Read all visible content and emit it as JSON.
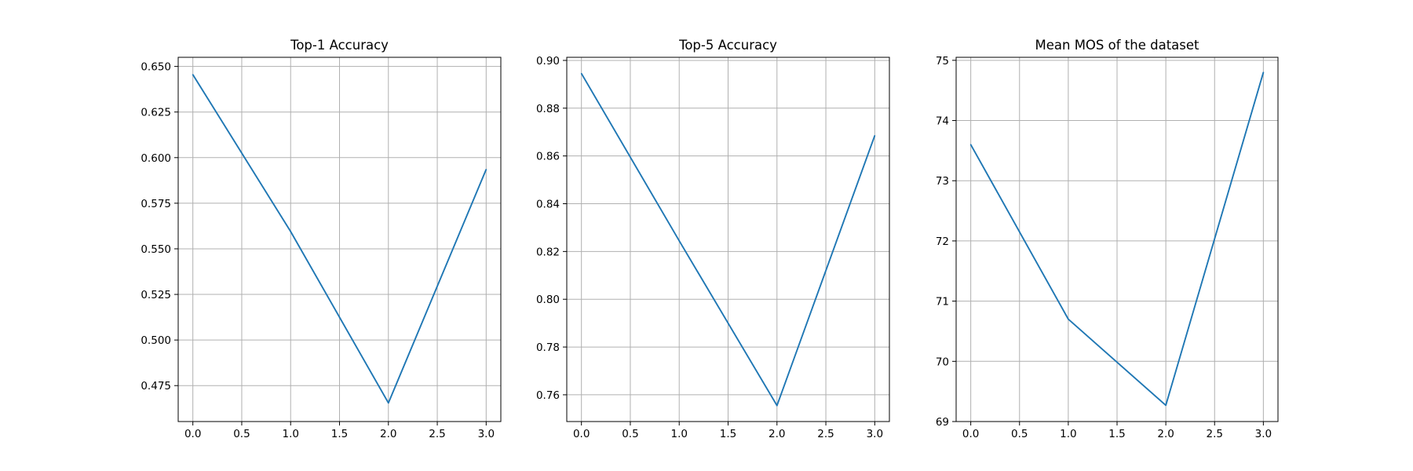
{
  "chart_data": [
    {
      "type": "line",
      "title": "Top-1 Accuracy",
      "xlabel": "",
      "ylabel": "",
      "x": [
        0,
        1,
        2,
        3
      ],
      "series": [
        {
          "values": [
            0.6455,
            0.5595,
            0.4655,
            0.5935
          ]
        }
      ],
      "xlim": [
        -0.15,
        3.15
      ],
      "ylim": [
        0.4553,
        0.655
      ],
      "xticks": [
        0.0,
        0.5,
        1.0,
        1.5,
        2.0,
        2.5,
        3.0
      ],
      "xticklabels": [
        "0.0",
        "0.5",
        "1.0",
        "1.5",
        "2.0",
        "2.5",
        "3.0"
      ],
      "yticks": [
        0.475,
        0.5,
        0.525,
        0.55,
        0.575,
        0.6,
        0.625,
        0.65
      ],
      "yticklabels": [
        "0.475",
        "0.500",
        "0.525",
        "0.550",
        "0.575",
        "0.600",
        "0.625",
        "0.650"
      ],
      "grid": true,
      "line_color": "#1f77b4"
    },
    {
      "type": "line",
      "title": "Top-5 Accuracy",
      "xlabel": "",
      "ylabel": "",
      "x": [
        0,
        1,
        2,
        3
      ],
      "series": [
        {
          "values": [
            0.8945,
            0.8245,
            0.7555,
            0.8685
          ]
        }
      ],
      "xlim": [
        -0.15,
        3.15
      ],
      "ylim": [
        0.7488,
        0.9013
      ],
      "xticks": [
        0.0,
        0.5,
        1.0,
        1.5,
        2.0,
        2.5,
        3.0
      ],
      "xticklabels": [
        "0.0",
        "0.5",
        "1.0",
        "1.5",
        "2.0",
        "2.5",
        "3.0"
      ],
      "yticks": [
        0.76,
        0.78,
        0.8,
        0.82,
        0.84,
        0.86,
        0.88,
        0.9
      ],
      "yticklabels": [
        "0.76",
        "0.78",
        "0.80",
        "0.82",
        "0.84",
        "0.86",
        "0.88",
        "0.90"
      ],
      "grid": true,
      "line_color": "#1f77b4"
    },
    {
      "type": "line",
      "title": "Mean MOS of the dataset",
      "xlabel": "",
      "ylabel": "",
      "x": [
        0,
        1,
        2,
        3
      ],
      "series": [
        {
          "values": [
            73.6,
            70.7,
            69.27,
            74.8
          ]
        }
      ],
      "xlim": [
        -0.15,
        3.15
      ],
      "ylim": [
        69.0,
        75.05
      ],
      "xticks": [
        0.0,
        0.5,
        1.0,
        1.5,
        2.0,
        2.5,
        3.0
      ],
      "xticklabels": [
        "0.0",
        "0.5",
        "1.0",
        "1.5",
        "2.0",
        "2.5",
        "3.0"
      ],
      "yticks": [
        69,
        70,
        71,
        72,
        73,
        74,
        75
      ],
      "yticklabels": [
        "69",
        "70",
        "71",
        "72",
        "73",
        "74",
        "75"
      ],
      "grid": true,
      "line_color": "#1f77b4"
    }
  ]
}
